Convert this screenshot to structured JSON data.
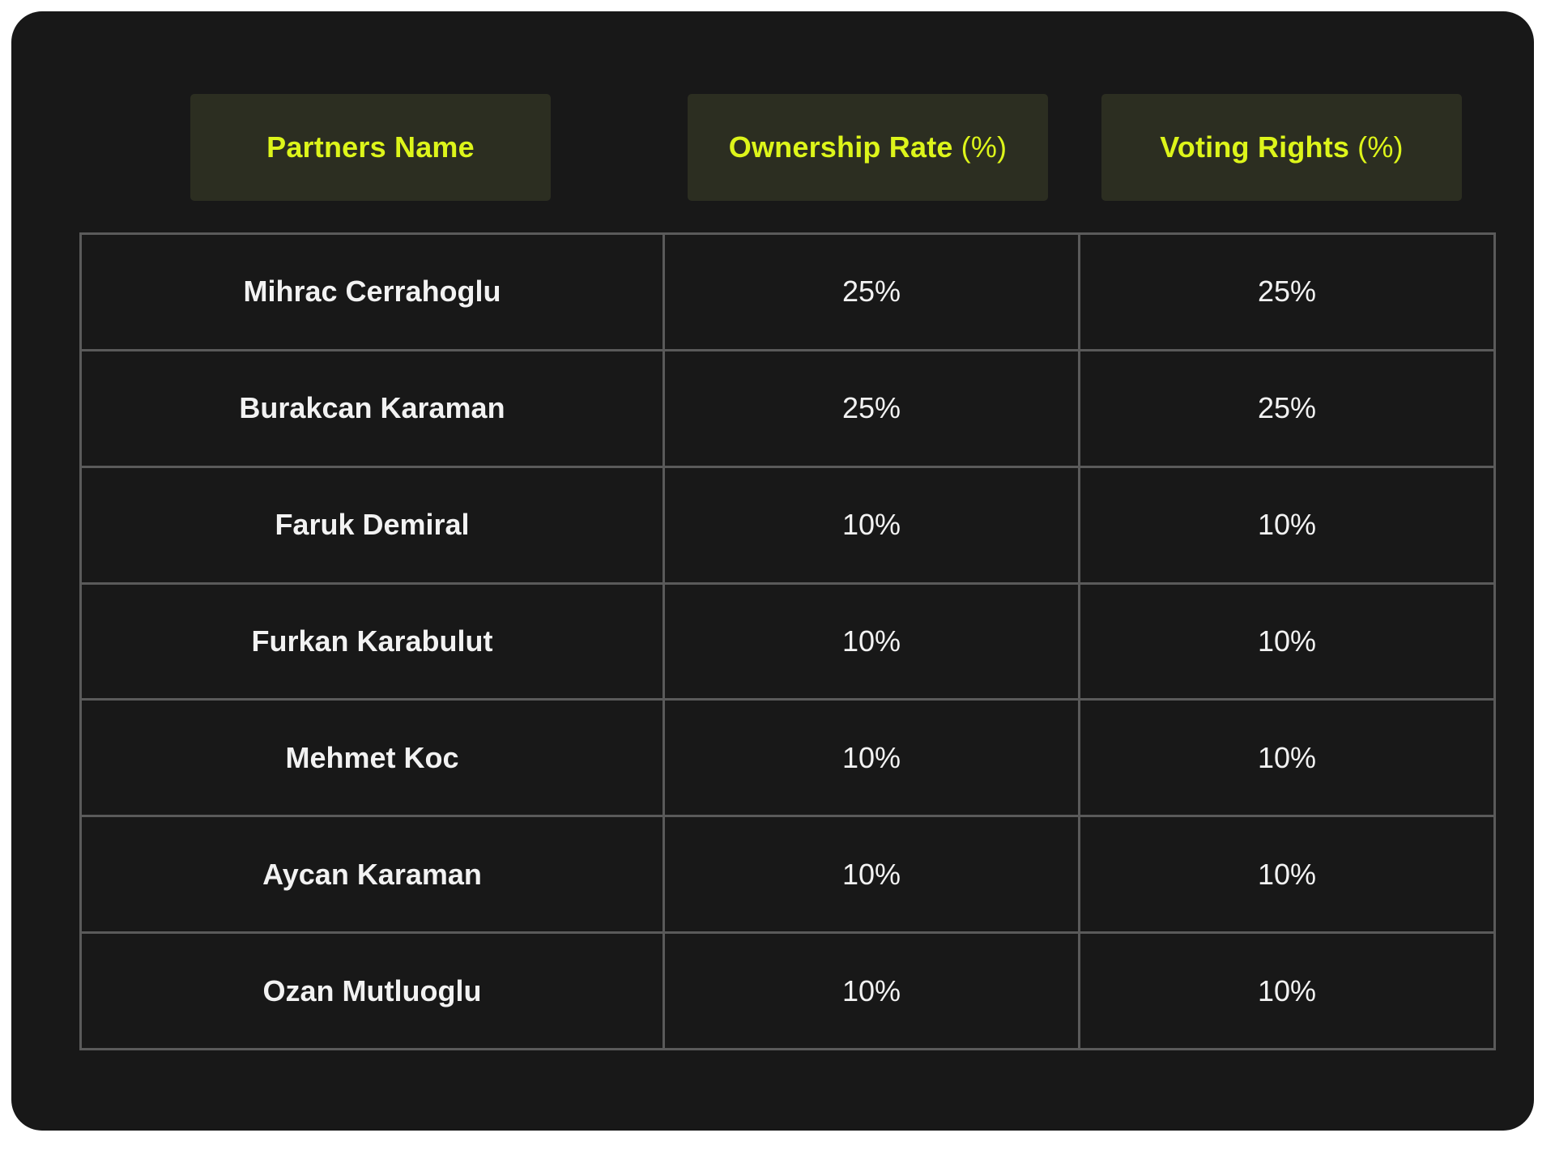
{
  "header": {
    "partners_name": "Partners Name",
    "ownership_rate": "Ownership Rate",
    "ownership_unit": "(%)",
    "voting_rights": "Voting Rights",
    "voting_unit": "(%)"
  },
  "rows": [
    {
      "name": "Mihrac Cerrahoglu",
      "ownership": "25%",
      "voting": "25%"
    },
    {
      "name": "Burakcan Karaman",
      "ownership": "25%",
      "voting": "25%"
    },
    {
      "name": "Faruk Demiral",
      "ownership": "10%",
      "voting": "10%"
    },
    {
      "name": "Furkan Karabulut",
      "ownership": "10%",
      "voting": "10%"
    },
    {
      "name": "Mehmet Koc",
      "ownership": "10%",
      "voting": "10%"
    },
    {
      "name": "Aycan Karaman",
      "ownership": "10%",
      "voting": "10%"
    },
    {
      "name": "Ozan Mutluoglu",
      "ownership": "10%",
      "voting": "10%"
    }
  ],
  "colors": {
    "card_background": "#181818",
    "header_background": "#2c2e21",
    "header_text": "#ddf51a",
    "cell_text": "#f2f2f2",
    "grid_line": "#5a5a5a"
  }
}
